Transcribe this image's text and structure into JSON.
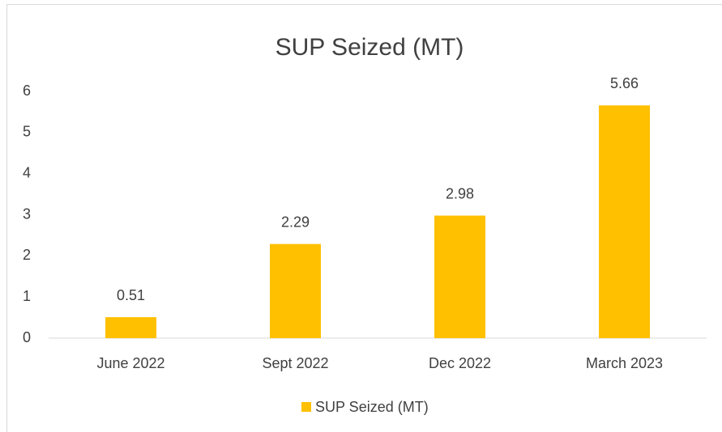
{
  "chart_data": {
    "type": "bar",
    "title": "SUP Seized (MT)",
    "categories": [
      "June 2022",
      "Sept 2022",
      "Dec 2022",
      "March 2023"
    ],
    "series": [
      {
        "name": "SUP Seized (MT)",
        "color": "#ffc000",
        "values": [
          0.51,
          2.29,
          2.98,
          5.66
        ]
      }
    ],
    "ylim": [
      0,
      6
    ],
    "yticks": [
      0,
      1,
      2,
      3,
      4,
      5,
      6
    ],
    "grid": false,
    "legend": "bottom"
  }
}
